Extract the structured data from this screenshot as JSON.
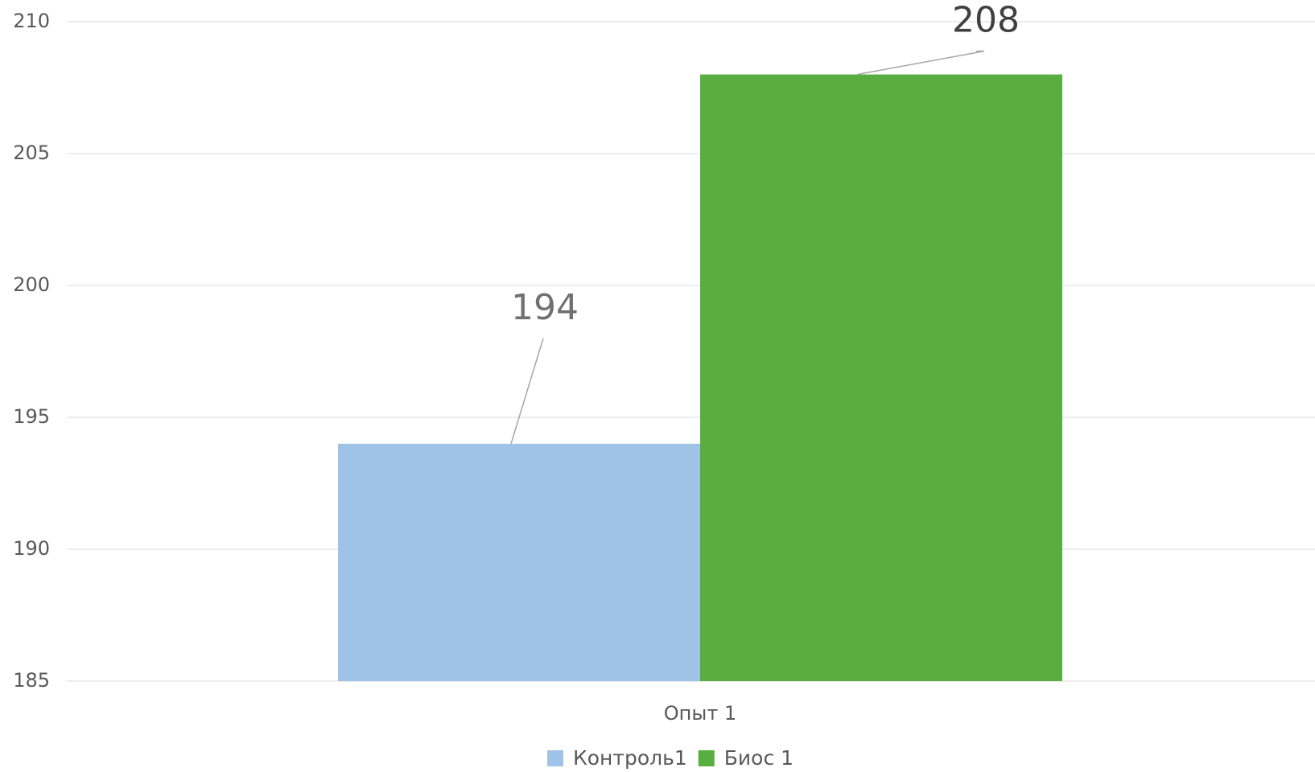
{
  "chart_data": {
    "type": "bar",
    "categories": [
      "Опыт 1"
    ],
    "series": [
      {
        "name": "Контроль1",
        "color": "#9fc3e7",
        "values": [
          194
        ]
      },
      {
        "name": "Биос 1",
        "color": "#5aad40",
        "values": [
          208
        ]
      }
    ],
    "ylim": [
      185,
      210
    ],
    "yticks": [
      185,
      190,
      195,
      200,
      205,
      210
    ],
    "grid": true,
    "legend": "bottom"
  }
}
